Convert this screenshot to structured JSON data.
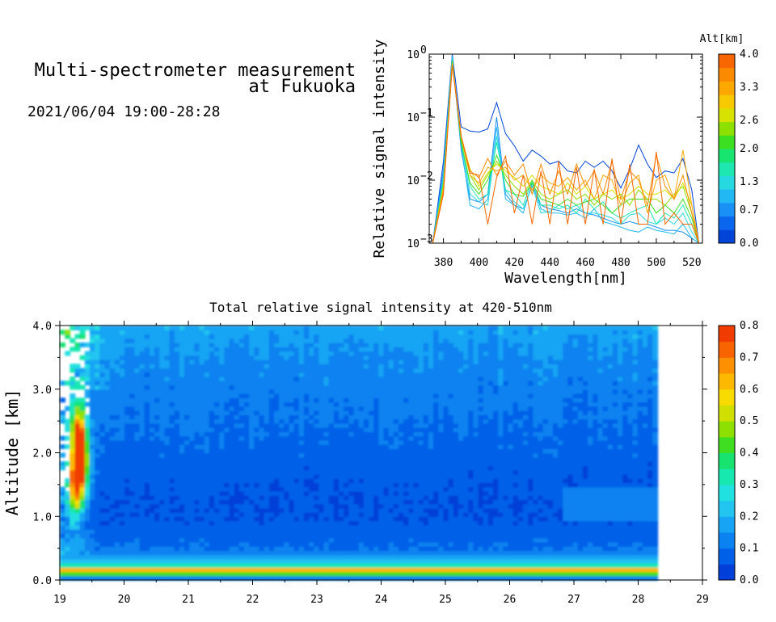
{
  "header": {
    "title_line1": "Multi-spectrometer measurement",
    "title_line2": "at Fukuoka",
    "timestamp": "2021/06/04 19:00-28:28"
  },
  "chart_data": [
    {
      "type": "line",
      "title": "",
      "xlabel": "Wavelength[nm]",
      "ylabel": "Relative signal intensity",
      "xlim": [
        372,
        526
      ],
      "ylim": [
        0.001,
        1
      ],
      "yscale": "log",
      "x_ticks": [
        "380",
        "400",
        "420",
        "440",
        "460",
        "480",
        "500",
        "520"
      ],
      "y_ticks": [
        {
          "base": "10",
          "exp": "0",
          "value": 1
        },
        {
          "base": "10",
          "exp": "−1",
          "value": 0.1
        },
        {
          "base": "10",
          "exp": "−2",
          "value": 0.01
        },
        {
          "base": "10",
          "exp": "−3",
          "value": 0.001
        }
      ],
      "legend": {
        "title": "Alt[km]",
        "ticks": [
          "4.0",
          "3.3",
          "2.6",
          "2.0",
          "1.3",
          "0.7",
          "0.0"
        ],
        "colors": [
          "#0044d8",
          "#0a66ec",
          "#1890f6",
          "#22b8f4",
          "#26d8e0",
          "#1ee8b0",
          "#18e470",
          "#3ce020",
          "#8ee000",
          "#d8e200",
          "#f8c800",
          "#fca800",
          "#fb8a00",
          "#f76600"
        ],
        "range": [
          0.0,
          4.0
        ]
      },
      "x": [
        374,
        380,
        385,
        390,
        395,
        400,
        405,
        410,
        415,
        420,
        425,
        430,
        435,
        440,
        445,
        450,
        455,
        460,
        465,
        470,
        475,
        480,
        485,
        490,
        495,
        500,
        505,
        510,
        515,
        520,
        524
      ],
      "series": [
        {
          "alt": 0.0,
          "color": "#0044d8",
          "values": [
            0.001,
            0.02,
            1.0,
            0.07,
            0.06,
            0.058,
            0.065,
            0.17,
            0.055,
            0.035,
            0.02,
            0.03,
            0.024,
            0.018,
            0.02,
            0.014,
            0.013,
            0.02,
            0.016,
            0.02,
            0.014,
            0.0075,
            0.015,
            0.036,
            0.018,
            0.011,
            0.014,
            0.013,
            0.022,
            0.007,
            0.001
          ]
        },
        {
          "alt": 0.5,
          "color": "#1890f6",
          "values": [
            0.001,
            0.015,
            0.95,
            0.03,
            0.005,
            0.0045,
            0.006,
            0.1,
            0.006,
            0.004,
            0.0035,
            0.008,
            0.004,
            0.0035,
            0.0033,
            0.003,
            0.0035,
            0.003,
            0.0028,
            0.0025,
            0.0022,
            0.002,
            0.0022,
            0.002,
            0.002,
            0.0018,
            0.0016,
            0.0016,
            0.0015,
            0.0012,
            0.001
          ]
        },
        {
          "alt": 1.0,
          "color": "#22b8f4",
          "values": [
            0.001,
            0.012,
            0.9,
            0.035,
            0.004,
            0.0035,
            0.005,
            0.07,
            0.005,
            0.004,
            0.003,
            0.009,
            0.0035,
            0.003,
            0.003,
            0.0028,
            0.003,
            0.0025,
            0.0035,
            0.0022,
            0.002,
            0.0018,
            0.0016,
            0.0015,
            0.0018,
            0.0016,
            0.0015,
            0.0014,
            0.002,
            0.0012,
            0.001
          ]
        },
        {
          "alt": 1.3,
          "color": "#26d8e0",
          "values": [
            0.001,
            0.01,
            0.85,
            0.04,
            0.006,
            0.0045,
            0.004,
            0.05,
            0.007,
            0.0045,
            0.0035,
            0.008,
            0.003,
            0.0032,
            0.004,
            0.0035,
            0.004,
            0.003,
            0.003,
            0.0028,
            0.0025,
            0.002,
            0.0028,
            0.003,
            0.0022,
            0.002,
            0.0025,
            0.002,
            0.003,
            0.0015,
            0.001
          ]
        },
        {
          "alt": 1.7,
          "color": "#1ee8b0",
          "values": [
            0.001,
            0.01,
            0.8,
            0.04,
            0.008,
            0.005,
            0.006,
            0.04,
            0.007,
            0.006,
            0.004,
            0.01,
            0.004,
            0.004,
            0.0035,
            0.004,
            0.003,
            0.005,
            0.0035,
            0.0045,
            0.003,
            0.0025,
            0.003,
            0.0035,
            0.004,
            0.002,
            0.003,
            0.0025,
            0.004,
            0.002,
            0.001
          ]
        },
        {
          "alt": 2.0,
          "color": "#3ce020",
          "values": [
            0.001,
            0.009,
            0.78,
            0.04,
            0.009,
            0.006,
            0.01,
            0.025,
            0.01,
            0.006,
            0.0055,
            0.009,
            0.005,
            0.0045,
            0.004,
            0.005,
            0.004,
            0.0045,
            0.005,
            0.004,
            0.003,
            0.004,
            0.005,
            0.005,
            0.005,
            0.003,
            0.004,
            0.003,
            0.005,
            0.0025,
            0.001
          ]
        },
        {
          "alt": 2.4,
          "color": "#8ee000",
          "values": [
            0.001,
            0.008,
            0.75,
            0.045,
            0.012,
            0.007,
            0.012,
            0.02,
            0.012,
            0.008,
            0.006,
            0.01,
            0.006,
            0.005,
            0.006,
            0.007,
            0.005,
            0.006,
            0.004,
            0.006,
            0.005,
            0.006,
            0.004,
            0.007,
            0.005,
            0.005,
            0.004,
            0.006,
            0.008,
            0.003,
            0.001
          ]
        },
        {
          "alt": 2.8,
          "color": "#d8e200",
          "values": [
            0.001,
            0.008,
            0.72,
            0.05,
            0.015,
            0.008,
            0.013,
            0.018,
            0.014,
            0.011,
            0.008,
            0.012,
            0.008,
            0.007,
            0.006,
            0.009,
            0.006,
            0.008,
            0.005,
            0.006,
            0.007,
            0.005,
            0.006,
            0.008,
            0.006,
            0.006,
            0.007,
            0.005,
            0.009,
            0.004,
            0.001
          ]
        },
        {
          "alt": 3.2,
          "color": "#fca800",
          "values": [
            0.001,
            0.007,
            0.7,
            0.05,
            0.012,
            0.009,
            0.016,
            0.014,
            0.016,
            0.01,
            0.012,
            0.007,
            0.012,
            0.009,
            0.008,
            0.011,
            0.007,
            0.01,
            0.005,
            0.012,
            0.01,
            0.004,
            0.009,
            0.012,
            0.003,
            0.01,
            0.012,
            0.005,
            0.03,
            0.004,
            0.001
          ]
        },
        {
          "alt": 3.6,
          "color": "#fb8a00",
          "values": [
            0.001,
            0.007,
            0.68,
            0.05,
            0.014,
            0.011,
            0.022,
            0.012,
            0.02,
            0.012,
            0.018,
            0.006,
            0.018,
            0.006,
            0.014,
            0.006,
            0.018,
            0.008,
            0.014,
            0.006,
            0.02,
            0.005,
            0.014,
            0.01,
            0.004,
            0.025,
            0.008,
            0.005,
            0.012,
            0.003,
            0.001
          ]
        },
        {
          "alt": 4.0,
          "color": "#f76600",
          "values": [
            0.001,
            0.006,
            0.66,
            0.05,
            0.013,
            0.012,
            0.002,
            0.011,
            0.024,
            0.003,
            0.012,
            0.002,
            0.014,
            0.002,
            0.02,
            0.002,
            0.016,
            0.002,
            0.015,
            0.002,
            0.022,
            0.002,
            0.018,
            0.002,
            0.002,
            0.028,
            0.002,
            0.003,
            0.002,
            0.002,
            0.001
          ]
        }
      ]
    },
    {
      "type": "heatmap",
      "title": "Total relative signal intensity at 420-510nm",
      "xlabel": "",
      "ylabel": "Altitude [km]",
      "xlim": [
        19,
        29
      ],
      "ylim": [
        0.0,
        4.0
      ],
      "x_ticks": [
        "19",
        "20",
        "21",
        "22",
        "23",
        "24",
        "25",
        "26",
        "27",
        "28",
        "29"
      ],
      "y_ticks": [
        "4.0",
        "3.0",
        "2.0",
        "1.0",
        "0.0"
      ],
      "data_end_time": 28.3,
      "colorbar": {
        "range": [
          0.0,
          0.8
        ],
        "ticks": [
          "0.8",
          "0.7",
          "0.6",
          "0.5",
          "0.4",
          "0.3",
          "0.2",
          "0.1",
          "0.0"
        ],
        "colors": [
          "#0040d8",
          "#0060e8",
          "#0a82f0",
          "#18a4f4",
          "#22c4f0",
          "#20e0e0",
          "#16e8b0",
          "#18e270",
          "#40de20",
          "#8ee000",
          "#cfe000",
          "#f8dc00",
          "#fdb800",
          "#fc9000",
          "#f86400",
          "#f03c00"
        ]
      },
      "profile": [
        {
          "alt": 0.05,
          "value": 0.12
        },
        {
          "alt": 0.15,
          "value": 0.7
        },
        {
          "alt": 0.25,
          "value": 0.24
        },
        {
          "alt": 0.35,
          "value": 0.16
        },
        {
          "alt": 0.5,
          "value": 0.1
        },
        {
          "alt": 1.0,
          "value": 0.05
        },
        {
          "alt": 1.5,
          "value": 0.06
        },
        {
          "alt": 2.0,
          "value": 0.08
        },
        {
          "alt": 2.5,
          "value": 0.1
        },
        {
          "alt": 3.0,
          "value": 0.12
        },
        {
          "alt": 3.5,
          "value": 0.14
        },
        {
          "alt": 4.0,
          "value": 0.18
        }
      ],
      "early_hour_peaks": [
        {
          "time": 19.2,
          "alt": 1.5,
          "value": 0.55
        },
        {
          "time": 19.25,
          "alt": 2.3,
          "value": 0.6
        },
        {
          "time": 19.3,
          "alt": 1.8,
          "value": 0.45
        }
      ]
    }
  ]
}
